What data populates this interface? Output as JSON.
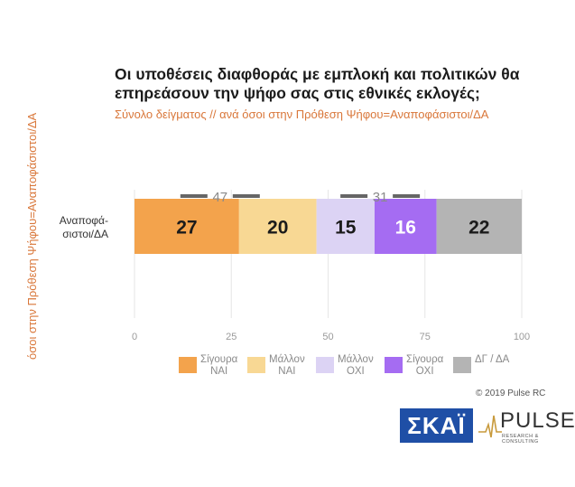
{
  "header": {
    "title": "Οι υποθέσεις διαφθοράς με εμπλοκή και πολιτικών θα επηρεάσουν την ψήφο σας στις εθνικές εκλογές;",
    "subtitle": "Σύνολο δείγματος // ανά όσοι στην Πρόθεση Ψήφου=Αναποφάσιστοι/ΔΑ",
    "side_label": "όσοι στην Πρόθεση Ψήφου=Αναποφάσιστοι/ΔΑ"
  },
  "chart_data": {
    "type": "bar",
    "orientation": "horizontal-stacked",
    "categories": [
      "Αναποφά-\nσιστοι/ΔΑ"
    ],
    "series": [
      {
        "name": "Σίγουρα ΝΑΙ",
        "values": [
          27
        ],
        "color": "#f3a34c",
        "label_color": "#1b1b1b"
      },
      {
        "name": "Μάλλον ΝΑΙ",
        "values": [
          20
        ],
        "color": "#f8d894",
        "label_color": "#1b1b1b"
      },
      {
        "name": "Μάλλον ΟΧΙ",
        "values": [
          15
        ],
        "color": "#dcd3f4",
        "label_color": "#1b1b1b"
      },
      {
        "name": "Σίγουρα ΟΧΙ",
        "values": [
          16
        ],
        "color": "#a56cf2",
        "label_color": "#ffffff"
      },
      {
        "name": "ΔΓ / ΔΑ",
        "values": [
          22
        ],
        "color": "#b4b4b4",
        "label_color": "#1b1b1b"
      }
    ],
    "totals": [
      {
        "label": "47"
      },
      {
        "label": "31"
      }
    ],
    "xlim": [
      0,
      100
    ],
    "xticks": [
      0,
      25,
      50,
      75,
      100
    ],
    "legend_position": "bottom"
  },
  "legend": [
    {
      "label": "Σίγουρα\nΝΑΙ",
      "color": "#f3a34c"
    },
    {
      "label": "Μάλλον\nΝΑΙ",
      "color": "#f8d894"
    },
    {
      "label": "Μάλλον\nΟΧΙ",
      "color": "#dcd3f4"
    },
    {
      "label": "Σίγουρα\nΟΧΙ",
      "color": "#a56cf2"
    },
    {
      "label": "ΔΓ / ΔΑ",
      "color": "#b4b4b4"
    }
  ],
  "footer": {
    "copyright": "© 2019 Pulse RC",
    "logo_skai": "ΣΚΑΪ",
    "logo_pulse": "PULSE",
    "logo_pulse_sub": "RESEARCH & CONSULTING"
  }
}
